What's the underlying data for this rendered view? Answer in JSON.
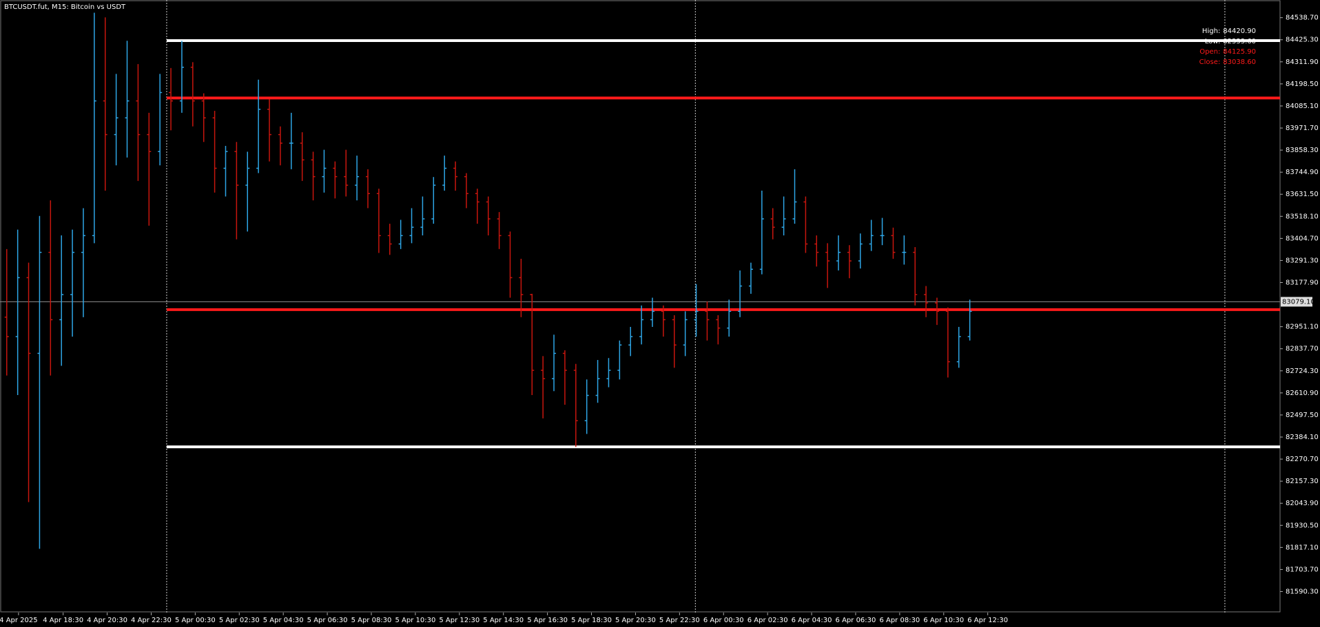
{
  "chart_data": {
    "type": "ohlc",
    "title": "BTCUSDT.fut, M15:  Bitcoin vs USDT",
    "up_color": "#2ea6e6",
    "down_color": "#c8160e",
    "ylim": [
      81482.4,
      84629.5
    ],
    "yticks": [
      {
        "value": 84538.7,
        "label": "84538.70"
      },
      {
        "value": 84425.3,
        "label": "84425.30"
      },
      {
        "value": 84311.9,
        "label": "84311.90"
      },
      {
        "value": 84198.5,
        "label": "84198.50"
      },
      {
        "value": 84085.1,
        "label": "84085.10"
      },
      {
        "value": 83971.7,
        "label": "83971.70"
      },
      {
        "value": 83858.3,
        "label": "83858.30"
      },
      {
        "value": 83744.9,
        "label": "83744.90"
      },
      {
        "value": 83631.5,
        "label": "83631.50"
      },
      {
        "value": 83518.1,
        "label": "83518.10"
      },
      {
        "value": 83404.7,
        "label": "83404.70"
      },
      {
        "value": 83291.3,
        "label": "83291.30"
      },
      {
        "value": 83177.9,
        "label": "83177.90"
      },
      {
        "value": 82951.1,
        "label": "82951.10"
      },
      {
        "value": 82837.7,
        "label": "82837.70"
      },
      {
        "value": 82724.3,
        "label": "82724.30"
      },
      {
        "value": 82610.9,
        "label": "82610.90"
      },
      {
        "value": 82497.5,
        "label": "82497.50"
      },
      {
        "value": 82384.1,
        "label": "82384.10"
      },
      {
        "value": 82270.7,
        "label": "82270.70"
      },
      {
        "value": 82157.3,
        "label": "82157.30"
      },
      {
        "value": 82043.9,
        "label": "82043.90"
      },
      {
        "value": 81930.5,
        "label": "81930.50"
      },
      {
        "value": 81817.1,
        "label": "81817.10"
      },
      {
        "value": 81703.7,
        "label": "81703.70"
      },
      {
        "value": 81590.3,
        "label": "81590.30"
      }
    ],
    "x_labels": [
      "4 Apr 2025",
      "4 Apr 18:30",
      "4 Apr 20:30",
      "4 Apr 22:30",
      "5 Apr 00:30",
      "5 Apr 02:30",
      "5 Apr 04:30",
      "5 Apr 06:30",
      "5 Apr 08:30",
      "5 Apr 10:30",
      "5 Apr 12:30",
      "5 Apr 14:30",
      "5 Apr 16:30",
      "5 Apr 18:30",
      "5 Apr 20:30",
      "5 Apr 22:30",
      "6 Apr 00:30",
      "6 Apr 02:30",
      "6 Apr 04:30",
      "6 Apr 06:30",
      "6 Apr 08:30",
      "6 Apr 10:30",
      "6 Apr 12:30"
    ],
    "open": [
      83000,
      82900,
      83203,
      82814,
      83333,
      82987,
      83116,
      83333,
      83419,
      84111,
      83938,
      84024,
      84111,
      83938,
      83851,
      84154,
      84111,
      84284,
      84111,
      84024,
      83765,
      83851,
      83678,
      83765,
      84068,
      83938,
      83894,
      83894,
      83808,
      83722,
      83765,
      83722,
      83678,
      83722,
      83635,
      83419,
      83376,
      83419,
      83462,
      83505,
      83678,
      83765,
      83722,
      83635,
      83592,
      83505,
      83419,
      83203,
      83116,
      82727,
      82684,
      82814,
      82727,
      82468,
      82598,
      82684,
      82727,
      82857,
      82900,
      82987,
      83030,
      82987,
      82857,
      82987,
      83030,
      82987,
      82944,
      83030,
      83160,
      83246,
      83505,
      83462,
      83505,
      83592,
      83376,
      83333,
      83289,
      83333,
      83289,
      83376,
      83419,
      83419,
      83333,
      83333,
      83116,
      83073,
      83030,
      82771,
      82900
    ],
    "high": [
      83350,
      83450,
      83280,
      83520,
      83600,
      83420,
      83450,
      83560,
      84564,
      84540,
      84250,
      84420,
      84300,
      84050,
      84250,
      84280,
      84420,
      84310,
      84150,
      84060,
      83880,
      83900,
      83850,
      84220,
      84120,
      83980,
      84050,
      83950,
      83850,
      83860,
      83800,
      83860,
      83830,
      83760,
      83660,
      83480,
      83500,
      83560,
      83620,
      83720,
      83830,
      83800,
      83740,
      83660,
      83620,
      83540,
      83440,
      83300,
      83120,
      82800,
      82910,
      82830,
      82760,
      82680,
      82780,
      82790,
      82880,
      82950,
      83060,
      83100,
      83060,
      83010,
      83030,
      83170,
      83080,
      83010,
      83090,
      83240,
      83280,
      83650,
      83560,
      83620,
      83760,
      83620,
      83420,
      83380,
      83420,
      83370,
      83430,
      83500,
      83510,
      83460,
      83420,
      83360,
      83160,
      83100,
      83050,
      82950,
      83090
    ],
    "low": [
      82700,
      82600,
      82050,
      81810,
      82700,
      82750,
      82900,
      83000,
      83380,
      83650,
      83780,
      83820,
      83700,
      83470,
      83780,
      83960,
      84050,
      83980,
      83900,
      83640,
      83620,
      83400,
      83440,
      83740,
      83800,
      83780,
      83760,
      83700,
      83600,
      83640,
      83610,
      83620,
      83600,
      83560,
      83330,
      83320,
      83350,
      83380,
      83420,
      83480,
      83650,
      83650,
      83560,
      83480,
      83420,
      83350,
      83100,
      83000,
      82600,
      82480,
      82620,
      82550,
      82333.6,
      82400,
      82560,
      82640,
      82680,
      82800,
      82860,
      82950,
      82900,
      82740,
      82800,
      82900,
      82880,
      82860,
      82900,
      83000,
      83120,
      83220,
      83400,
      83420,
      83480,
      83330,
      83260,
      83150,
      83240,
      83200,
      83250,
      83340,
      83370,
      83300,
      83270,
      83060,
      83000,
      82960,
      82690,
      82740,
      82880
    ],
    "close": [
      82900,
      83203,
      82814,
      83333,
      82987,
      83116,
      83333,
      83419,
      84111,
      83938,
      84024,
      84111,
      83938,
      83851,
      84154,
      84111,
      84284,
      84111,
      84024,
      83765,
      83851,
      83678,
      83765,
      84068,
      83938,
      83894,
      83894,
      83808,
      83722,
      83765,
      83722,
      83678,
      83722,
      83635,
      83419,
      83376,
      83419,
      83462,
      83505,
      83678,
      83765,
      83722,
      83635,
      83592,
      83505,
      83419,
      83203,
      83116,
      82727,
      82684,
      82814,
      82727,
      82468,
      82598,
      82684,
      82727,
      82857,
      82900,
      82987,
      83030,
      82987,
      82857,
      82987,
      83030,
      82987,
      82944,
      83030,
      83160,
      83246,
      83505,
      83462,
      83505,
      83592,
      83376,
      83333,
      83289,
      83333,
      83289,
      83376,
      83419,
      83419,
      83333,
      83333,
      83116,
      83073,
      83030,
      82771,
      82900,
      83030
    ],
    "levels": [
      {
        "name": "High:",
        "value": 84420.9,
        "value_label": "84420.90",
        "color": "#ffffff"
      },
      {
        "name": "Low:",
        "value": 82333.6,
        "value_label": "82333.60",
        "color": "#ffffff"
      },
      {
        "name": "Open:",
        "value": 84125.9,
        "value_label": "84125.90",
        "color": "#ff1a1a"
      },
      {
        "name": "Close:",
        "value": 83038.6,
        "value_label": "83038.60",
        "color": "#ff1a1a"
      }
    ],
    "last_price": {
      "value": 83079.1,
      "label": "83079.10"
    }
  }
}
